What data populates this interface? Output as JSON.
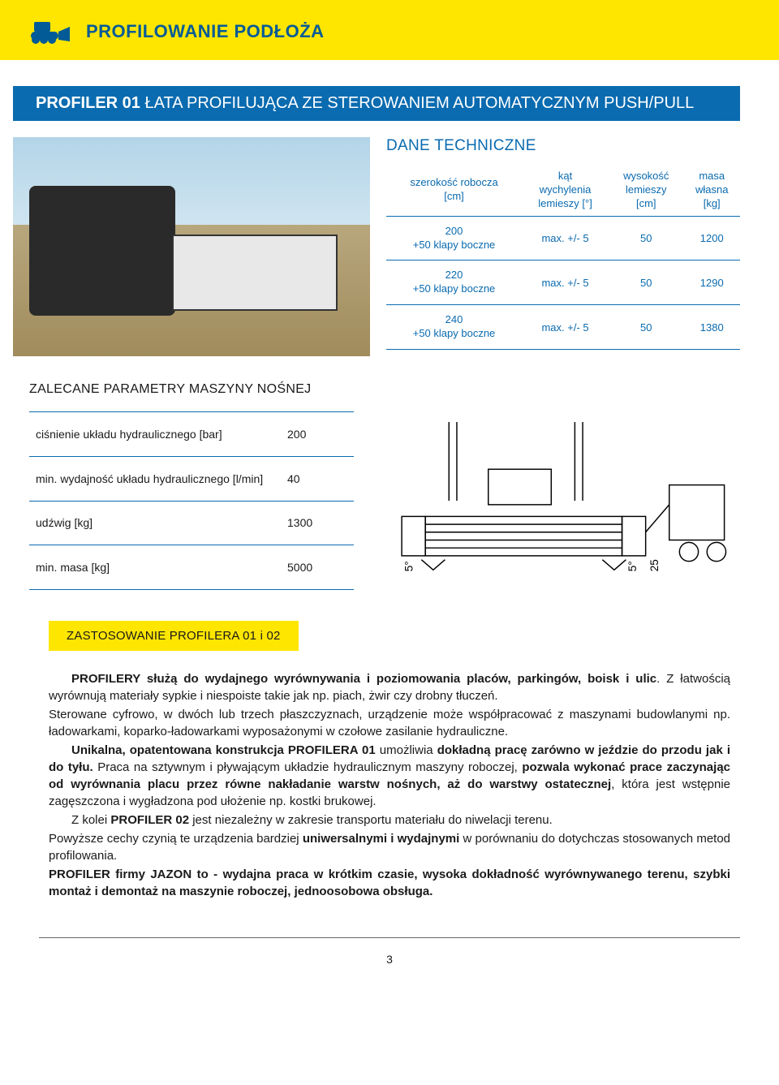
{
  "header": {
    "title": "PROFILOWANIE PODŁOŻA",
    "title_color": "#025b97",
    "banner_bg": "#ffe600"
  },
  "blue_banner": {
    "bold": "PROFILER 01",
    "light": " ŁATA PROFILUJĄCA  ZE STEROWANIEM AUTOMATYCZNYM PUSH/PULL",
    "bg": "#0a6bb0",
    "text_color": "#ffffff"
  },
  "tech": {
    "heading": "DANE TECHNICZNE",
    "table": {
      "columns": [
        "szerokość robocza\n[cm]",
        "kąt\nwychylenia\nlemieszy [°]",
        "wysokość\nlemieszy\n[cm]",
        "masa\nwłasna\n[kg]"
      ],
      "rows": [
        [
          "200\n+50 klapy boczne",
          "max. +/- 5",
          "50",
          "1200"
        ],
        [
          "220\n+50 klapy boczne",
          "max. +/- 5",
          "50",
          "1290"
        ],
        [
          "240\n+50 klapy boczne",
          "max. +/- 5",
          "50",
          "1380"
        ]
      ],
      "header_color": "#0a6bb0",
      "cell_color": "#0a6bb0",
      "border_color": "#0a6bb0"
    }
  },
  "params": {
    "heading": "ZALECANE PARAMETRY MASZYNY NOŚNEJ",
    "rows": [
      {
        "label": "ciśnienie układu hydraulicznego [bar]",
        "value": "200"
      },
      {
        "label": "min. wydajność układu hydraulicznego [l/min]",
        "value": "40"
      },
      {
        "label": "udźwig [kg]",
        "value": "1300"
      },
      {
        "label": "min. masa [kg]",
        "value": "5000"
      }
    ],
    "border_color": "#0a6bb0"
  },
  "diagram": {
    "angle_left": "5°",
    "angle_right": "5°",
    "height_label": "25"
  },
  "yellow_box": {
    "text": "ZASTOSOWANIE PROFILERA 01 i 02",
    "bg": "#ffe600"
  },
  "body": {
    "p1_a": "PROFILERY służą do wydajnego wyrównywania i poziomowania placów, parkingów, boisk i ulic",
    "p1_b": ". Z łatwością wyrównują materiały sypkie i niespoiste takie jak np. piach, żwir czy drobny tłuczeń.",
    "p2": "Sterowane cyfrowo, w dwóch lub trzech płaszczyznach, urządzenie może współpracować z maszynami budowlanymi np. ładowarkami, koparko-ładowarkami wyposażonymi w czołowe zasilanie hydrauliczne.",
    "p3_a": "Unikalna, opatentowana konstrukcja PROFILERA 01",
    "p3_b": " umożliwia ",
    "p3_c": "dokładną pracę zarówno w jeździe do przodu jak i do tyłu.",
    "p3_d": " Praca na sztywnym i pływającym układzie hydraulicznym maszyny roboczej, ",
    "p3_e": "pozwala wykonać prace zaczynając od wyrównania placu przez równe nakładanie warstw nośnych, aż do warstwy ostatecznej",
    "p3_f": ", która jest wstępnie zagęszczona i wygładzona pod ułożenie np. kostki brukowej.",
    "p4_a": "Z kolei ",
    "p4_b": "PROFILER 02",
    "p4_c": "  jest niezależny w zakresie transportu materiału do niwelacji terenu.",
    "p5_a": "Powyższe cechy czynią te urządzenia bardziej ",
    "p5_b": "uniwersalnymi i wydajnymi",
    "p5_c": " w porównaniu do dotychczas stosowanych metod profilowania.",
    "p6_a": "PROFILER firmy JAZON to - wydajna praca   w krótkim czasie,   wysoka dokładność wyrównywanego terenu, szybki montaż  i demontaż na maszynie roboczej,  jednoosobowa obsługa."
  },
  "page_number": "3"
}
